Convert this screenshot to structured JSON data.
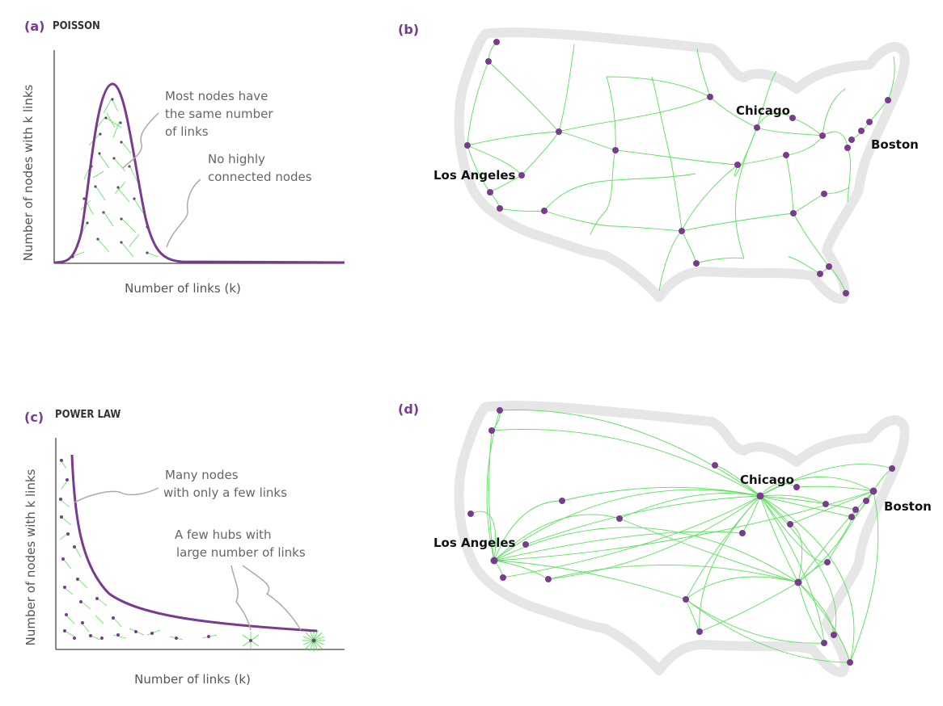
{
  "colors": {
    "accent": "#7a3b8f",
    "link": "#59e05a",
    "outline": "#e8e8e8",
    "node": "#7a3b8f"
  },
  "panel_a": {
    "letter": "(a)",
    "title": "POISSON",
    "annotation1": [
      "Most nodes have",
      "the same number",
      "of links"
    ],
    "annotation2": [
      "No highly",
      "connected nodes"
    ],
    "xlabel": "Number of links (k)",
    "ylabel": "Number of nodes with k links"
  },
  "panel_b": {
    "letter": "(b)",
    "cities": {
      "chicago": "Chicago",
      "boston": "Boston",
      "la": "Los Angeles"
    }
  },
  "panel_c": {
    "letter": "(c)",
    "title": "POWER LAW",
    "annotation1": [
      "Many nodes",
      "with only a few links"
    ],
    "annotation2": [
      "A few hubs with",
      "large number of links"
    ],
    "xlabel": "Number of links (k)",
    "ylabel": "Number of nodes with k links"
  },
  "panel_d": {
    "letter": "(d)",
    "cities": {
      "chicago": "Chicago",
      "boston": "Boston",
      "la": "Los Angeles"
    }
  }
}
